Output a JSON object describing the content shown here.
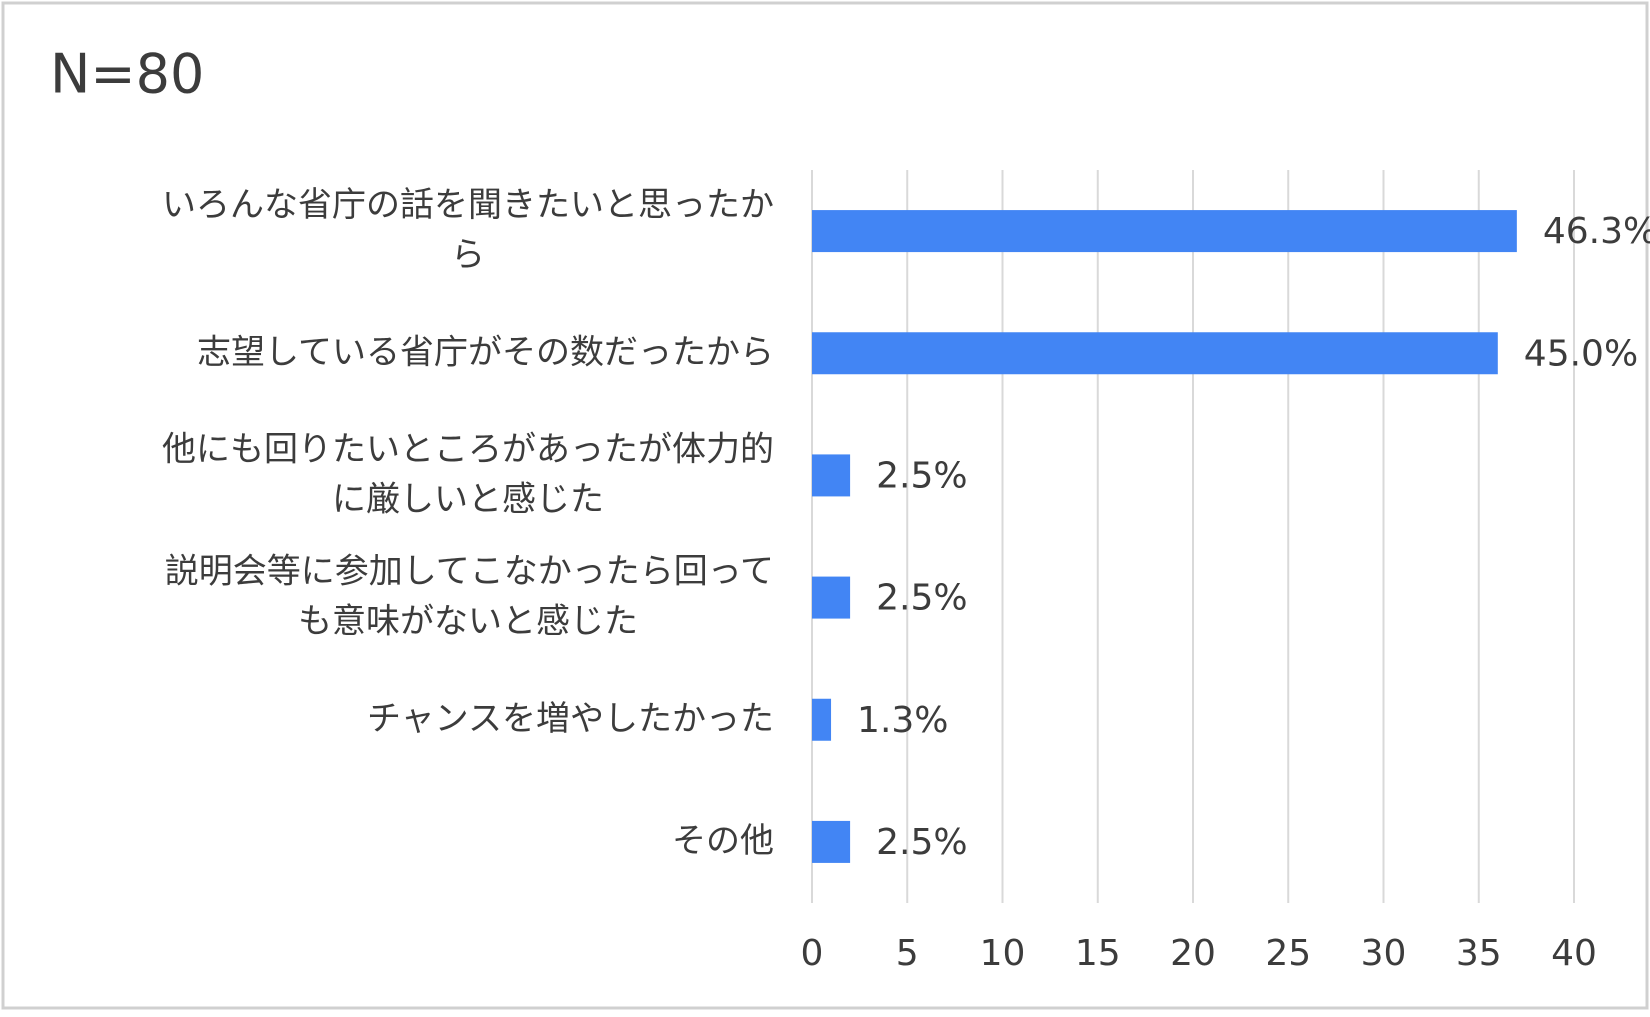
{
  "chart_data": {
    "type": "bar",
    "orientation": "horizontal",
    "title": "N=80",
    "categories": [
      "いろんな省庁の話を聞きたいと思ったから",
      "志望している省庁がその数だったから",
      "他にも回りたいところがあったが体力的に厳しいと感じた",
      "説明会等に参加してこなかったら回っても意味がないと感じた",
      "チャンスを増やしたかった",
      "その他"
    ],
    "values": [
      37,
      36,
      2,
      2,
      1,
      2
    ],
    "value_labels": [
      "46.3%",
      "45.0%",
      "2.5%",
      "2.5%",
      "1.3%",
      "2.5%"
    ],
    "color": "#4285f4",
    "xlim": [
      0,
      40
    ],
    "xticks": [
      0,
      5,
      10,
      15,
      20,
      25,
      30,
      35,
      40
    ],
    "grid": true
  }
}
